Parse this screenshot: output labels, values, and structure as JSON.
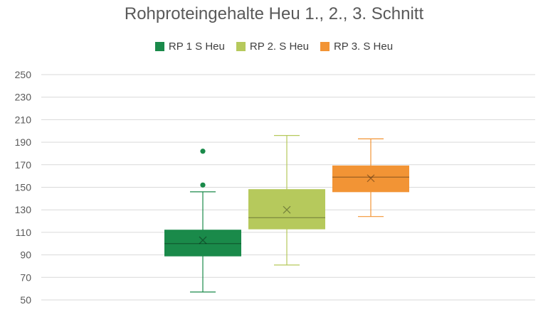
{
  "chart_data": {
    "type": "boxplot",
    "title": "Rohproteingehalte Heu 1., 2., 3. Schnitt",
    "xlabel": "",
    "ylabel": "",
    "ylim": [
      50,
      250
    ],
    "yticks": [
      50,
      70,
      90,
      110,
      130,
      150,
      170,
      190,
      210,
      230,
      250
    ],
    "grid": true,
    "legend_position": "top",
    "series": [
      {
        "name": "RP 1 S Heu",
        "color": "#1a8a4a",
        "min": 57,
        "q1": 89,
        "median": 100,
        "q3": 112,
        "max": 146,
        "mean": 103,
        "outliers": [
          152,
          182
        ]
      },
      {
        "name": "RP 2. S Heu",
        "color": "#b6c95c",
        "min": 81,
        "q1": 113,
        "median": 123,
        "q3": 148,
        "max": 196,
        "mean": 130,
        "outliers": []
      },
      {
        "name": "RP 3. S Heu",
        "color": "#f29435",
        "min": 124,
        "q1": 146,
        "median": 159,
        "q3": 169,
        "max": 193,
        "mean": 158,
        "outliers": []
      }
    ]
  }
}
